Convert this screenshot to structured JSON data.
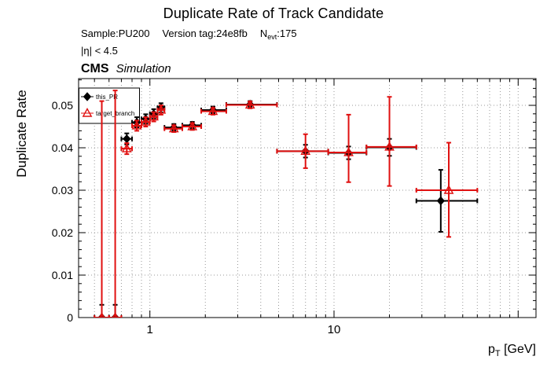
{
  "header": {
    "title": "Duplicate Rate of Track Candidate",
    "sample": "Sample:PU200",
    "version": "Version tag:24e8fb",
    "nevt_prefix": "N",
    "nevt_sub": "evt",
    "nevt_value": ":175",
    "eta_cut": "|η| < 4.5",
    "cms": "CMS",
    "simulation": "Simulation"
  },
  "axes": {
    "y_title": "Duplicate Rate",
    "x_title_main": "p",
    "x_title_sub": "T",
    "x_title_unit": " [GeV]",
    "x_major": [
      1,
      10,
      100
    ],
    "x_tick_labels": [
      {
        "value": 1,
        "label": "1"
      },
      {
        "value": 10,
        "label": "10"
      }
    ],
    "y_tick_labels": [
      {
        "value": 0,
        "label": "0"
      },
      {
        "value": 0.01,
        "label": "0.01"
      },
      {
        "value": 0.02,
        "label": "0.02"
      },
      {
        "value": 0.03,
        "label": "0.03"
      },
      {
        "value": 0.04,
        "label": "0.04"
      },
      {
        "value": 0.05,
        "label": "0.05"
      }
    ]
  },
  "legend": {
    "entries": [
      {
        "label": "this_PR",
        "marker": "diamond",
        "color": "#000000"
      },
      {
        "label": "target_branch",
        "marker": "triangle-open",
        "color": "#e01010"
      }
    ]
  },
  "chart_data": {
    "type": "scatter",
    "title": "Duplicate Rate of Track Candidate",
    "xlabel": "p_T [GeV]",
    "ylabel": "Duplicate Rate",
    "xscale": "log",
    "xlim": [
      0.41,
      125
    ],
    "ylim": [
      0,
      0.0563
    ],
    "grid": true,
    "grid_color": "#999999",
    "legend_position": "top-left",
    "x_grid": [
      0.5,
      0.6,
      0.7,
      0.8,
      0.9,
      1,
      2,
      3,
      4,
      5,
      6,
      7,
      8,
      9,
      10,
      20,
      30,
      40,
      50,
      60,
      70,
      80,
      90,
      100
    ],
    "y_grid": [
      0.01,
      0.02,
      0.03,
      0.04,
      0.05
    ],
    "series": [
      {
        "name": "this_PR",
        "color": "#000000",
        "marker": "diamond",
        "points": [
          {
            "x": 0.548,
            "xlo": 0.5,
            "xhi": 0.6,
            "y": 0.0,
            "ylo": 0.0,
            "yhi": 0.003
          },
          {
            "x": 0.648,
            "xlo": 0.6,
            "xhi": 0.7,
            "y": 0.0,
            "ylo": 0.0,
            "yhi": 0.003
          },
          {
            "x": 0.749,
            "xlo": 0.7,
            "xhi": 0.8,
            "y": 0.0421,
            "ylo": 0.0408,
            "yhi": 0.0434
          },
          {
            "x": 0.849,
            "xlo": 0.8,
            "xhi": 0.9,
            "y": 0.046,
            "ylo": 0.0448,
            "yhi": 0.0472
          },
          {
            "x": 0.949,
            "xlo": 0.9,
            "xhi": 1.0,
            "y": 0.0468,
            "ylo": 0.0457,
            "yhi": 0.0479
          },
          {
            "x": 1.049,
            "xlo": 1.0,
            "xhi": 1.1,
            "y": 0.048,
            "ylo": 0.0469,
            "yhi": 0.0491
          },
          {
            "x": 1.149,
            "xlo": 1.1,
            "xhi": 1.2,
            "y": 0.0494,
            "ylo": 0.0483,
            "yhi": 0.0505
          },
          {
            "x": 1.35,
            "xlo": 1.2,
            "xhi": 1.5,
            "y": 0.0448,
            "ylo": 0.044,
            "yhi": 0.0456
          },
          {
            "x": 1.7,
            "xlo": 1.5,
            "xhi": 1.9,
            "y": 0.0453,
            "ylo": 0.0445,
            "yhi": 0.0461
          },
          {
            "x": 2.2,
            "xlo": 1.9,
            "xhi": 2.6,
            "y": 0.0489,
            "ylo": 0.0481,
            "yhi": 0.0497
          },
          {
            "x": 3.5,
            "xlo": 2.6,
            "xhi": 4.9,
            "y": 0.0502,
            "ylo": 0.0494,
            "yhi": 0.051
          },
          {
            "x": 7.0,
            "xlo": 4.9,
            "xhi": 9.3,
            "y": 0.0392,
            "ylo": 0.0377,
            "yhi": 0.0407
          },
          {
            "x": 12.0,
            "xlo": 9.3,
            "xhi": 15.0,
            "y": 0.0388,
            "ylo": 0.0373,
            "yhi": 0.0403
          },
          {
            "x": 20.0,
            "xlo": 15.0,
            "xhi": 28.0,
            "y": 0.0401,
            "ylo": 0.0381,
            "yhi": 0.0421
          },
          {
            "x": 38.0,
            "xlo": 28.0,
            "xhi": 60.0,
            "y": 0.0275,
            "ylo": 0.0202,
            "yhi": 0.0348
          }
        ]
      },
      {
        "name": "target_branch",
        "color": "#e01010",
        "marker": "triangle-open",
        "points": [
          {
            "x": 0.548,
            "xlo": 0.5,
            "xhi": 0.6,
            "y": 0.0,
            "ylo": 0.0,
            "yhi": 0.051
          },
          {
            "x": 0.648,
            "xlo": 0.6,
            "xhi": 0.7,
            "y": 0.0,
            "ylo": 0.0,
            "yhi": 0.0535
          },
          {
            "x": 0.749,
            "xlo": 0.7,
            "xhi": 0.8,
            "y": 0.0398,
            "ylo": 0.0385,
            "yhi": 0.0411
          },
          {
            "x": 0.849,
            "xlo": 0.8,
            "xhi": 0.9,
            "y": 0.0452,
            "ylo": 0.044,
            "yhi": 0.0464
          },
          {
            "x": 0.949,
            "xlo": 0.9,
            "xhi": 1.0,
            "y": 0.0461,
            "ylo": 0.045,
            "yhi": 0.0472
          },
          {
            "x": 1.049,
            "xlo": 1.0,
            "xhi": 1.1,
            "y": 0.0473,
            "ylo": 0.0462,
            "yhi": 0.0484
          },
          {
            "x": 1.149,
            "xlo": 1.1,
            "xhi": 1.2,
            "y": 0.0489,
            "ylo": 0.0478,
            "yhi": 0.05
          },
          {
            "x": 1.35,
            "xlo": 1.2,
            "xhi": 1.5,
            "y": 0.0445,
            "ylo": 0.0437,
            "yhi": 0.0453
          },
          {
            "x": 1.7,
            "xlo": 1.5,
            "xhi": 1.9,
            "y": 0.045,
            "ylo": 0.0442,
            "yhi": 0.0458
          },
          {
            "x": 2.2,
            "xlo": 1.9,
            "xhi": 2.6,
            "y": 0.0486,
            "ylo": 0.0478,
            "yhi": 0.0494
          },
          {
            "x": 3.5,
            "xlo": 2.6,
            "xhi": 4.9,
            "y": 0.0501,
            "ylo": 0.0493,
            "yhi": 0.0509
          },
          {
            "x": 7.0,
            "xlo": 4.9,
            "xhi": 9.3,
            "y": 0.0392,
            "ylo": 0.0352,
            "yhi": 0.0432
          },
          {
            "x": 12.0,
            "xlo": 9.3,
            "xhi": 15.0,
            "y": 0.0389,
            "ylo": 0.0319,
            "yhi": 0.0478
          },
          {
            "x": 20.0,
            "xlo": 15.0,
            "xhi": 28.0,
            "y": 0.0402,
            "ylo": 0.031,
            "yhi": 0.052
          },
          {
            "x": 42.0,
            "xlo": 28.0,
            "xhi": 60.0,
            "y": 0.03,
            "ylo": 0.019,
            "yhi": 0.0412
          }
        ]
      }
    ]
  }
}
